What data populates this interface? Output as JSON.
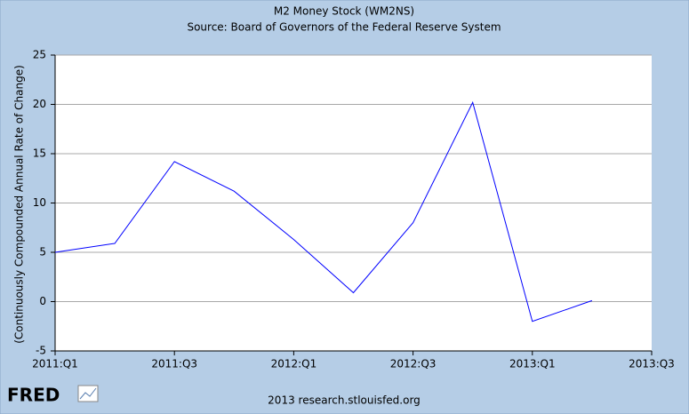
{
  "chart_data": {
    "type": "line",
    "title": "M2 Money Stock (WM2NS)",
    "subtitle": "Source: Board of Governors of the Federal Reserve System",
    "y_label": "(Continuously Compounded Annual Rate of Change)",
    "logo": "FRED",
    "footer": "2013 research.stlouisfed.org",
    "categories": [
      "2011:Q1",
      null,
      "2011:Q3",
      null,
      "2012:Q1",
      null,
      "2012:Q3",
      null,
      "2013:Q1",
      null,
      "2013:Q3"
    ],
    "values": [
      5.0,
      5.9,
      14.2,
      11.2,
      6.3,
      0.9,
      8.0,
      20.2,
      -2.0,
      0.1,
      null
    ],
    "color": "#0000ff",
    "ylim": [
      -5,
      25
    ],
    "yticks": [
      -5,
      0,
      5,
      10,
      15,
      20,
      25
    ],
    "grid": true
  }
}
